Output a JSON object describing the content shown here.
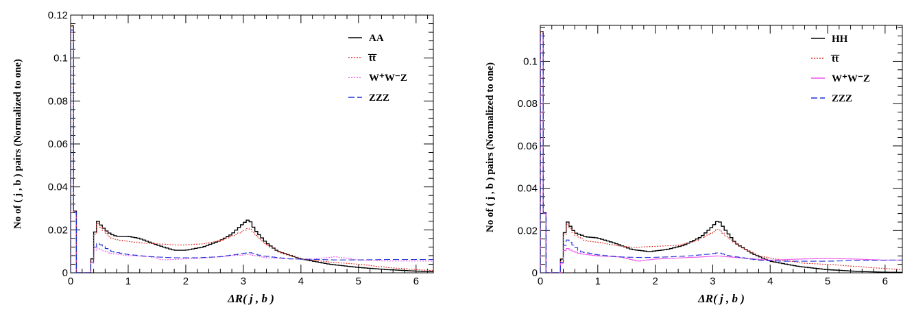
{
  "chart_data": [
    {
      "type": "histogram",
      "xlabel": "ΔR( j , b )",
      "ylabel": "No of ( j , b ) pairs (Normalized to one)",
      "xlim": [
        0,
        6.3
      ],
      "ylim": [
        0,
        0.12
      ],
      "x_ticks": [
        0,
        1,
        2,
        3,
        4,
        5,
        6
      ],
      "x_tick_labels": [
        "0",
        "1",
        "2",
        "3",
        "4",
        "5",
        "6"
      ],
      "y_ticks": [
        0,
        0.02,
        0.04,
        0.06,
        0.08,
        0.1,
        0.12
      ],
      "y_tick_labels": [
        "0",
        "0.02",
        "0.04",
        "0.06",
        "0.08",
        "0.1",
        "0.12"
      ],
      "legend_position": "top-right",
      "series": [
        {
          "name": "AA",
          "color": "#000000",
          "dash": "solid",
          "points": [
            [
              0.0,
              0.115
            ],
            [
              0.1,
              0
            ],
            [
              0.35,
              0
            ],
            [
              0.4,
              0.013
            ],
            [
              0.45,
              0.025
            ],
            [
              0.5,
              0.023
            ],
            [
              0.6,
              0.02
            ],
            [
              0.7,
              0.018
            ],
            [
              0.8,
              0.017
            ],
            [
              1.0,
              0.017
            ],
            [
              1.2,
              0.016
            ],
            [
              1.5,
              0.013
            ],
            [
              1.8,
              0.0105
            ],
            [
              2.0,
              0.0105
            ],
            [
              2.3,
              0.012
            ],
            [
              2.6,
              0.015
            ],
            [
              2.8,
              0.018
            ],
            [
              3.0,
              0.023
            ],
            [
              3.1,
              0.025
            ],
            [
              3.2,
              0.02
            ],
            [
              3.4,
              0.014
            ],
            [
              3.6,
              0.01
            ],
            [
              4.0,
              0.0065
            ],
            [
              4.5,
              0.004
            ],
            [
              5.0,
              0.0025
            ],
            [
              5.5,
              0.0015
            ],
            [
              6.0,
              0.0008
            ],
            [
              6.3,
              0.0005
            ]
          ]
        },
        {
          "name": "t̅t̅",
          "color": "#e0302c",
          "dash": "dotted",
          "points": [
            [
              0.0,
              0.115
            ],
            [
              0.1,
              0
            ],
            [
              0.35,
              0
            ],
            [
              0.4,
              0.012
            ],
            [
              0.45,
              0.024
            ],
            [
              0.5,
              0.022
            ],
            [
              0.6,
              0.019
            ],
            [
              0.7,
              0.016
            ],
            [
              0.9,
              0.015
            ],
            [
              1.2,
              0.014
            ],
            [
              1.5,
              0.0135
            ],
            [
              1.8,
              0.013
            ],
            [
              2.0,
              0.013
            ],
            [
              2.3,
              0.0135
            ],
            [
              2.6,
              0.015
            ],
            [
              2.8,
              0.017
            ],
            [
              3.0,
              0.0195
            ],
            [
              3.1,
              0.021
            ],
            [
              3.2,
              0.018
            ],
            [
              3.4,
              0.013
            ],
            [
              3.7,
              0.009
            ],
            [
              4.0,
              0.0065
            ],
            [
              4.5,
              0.005
            ],
            [
              5.0,
              0.004
            ],
            [
              5.5,
              0.0025
            ],
            [
              6.0,
              0.0015
            ],
            [
              6.3,
              0.001
            ]
          ]
        },
        {
          "name": "W⁺W⁻Z",
          "color": "#ee55ee",
          "dash": "dotted",
          "points": [
            [
              0.0,
              0.112
            ],
            [
              0.1,
              0
            ],
            [
              0.35,
              0
            ],
            [
              0.4,
              0.009
            ],
            [
              0.45,
              0.012
            ],
            [
              0.5,
              0.011
            ],
            [
              0.7,
              0.009
            ],
            [
              1.0,
              0.008
            ],
            [
              1.4,
              0.0075
            ],
            [
              1.6,
              0.006
            ],
            [
              2.0,
              0.0065
            ],
            [
              2.4,
              0.007
            ],
            [
              2.8,
              0.008
            ],
            [
              3.1,
              0.0085
            ],
            [
              3.4,
              0.007
            ],
            [
              3.8,
              0.0065
            ],
            [
              4.2,
              0.0063
            ],
            [
              4.6,
              0.0075
            ],
            [
              5.0,
              0.006
            ],
            [
              5.5,
              0.0055
            ],
            [
              6.0,
              0.0055
            ],
            [
              6.3,
              0.0055
            ]
          ]
        },
        {
          "name": "ZZZ",
          "color": "#1f2fd6",
          "dash": "dashed",
          "points": [
            [
              0.0,
              0.113
            ],
            [
              0.1,
              0
            ],
            [
              0.35,
              0
            ],
            [
              0.4,
              0.01
            ],
            [
              0.45,
              0.014
            ],
            [
              0.5,
              0.0135
            ],
            [
              0.7,
              0.01
            ],
            [
              1.0,
              0.0085
            ],
            [
              1.4,
              0.0075
            ],
            [
              1.8,
              0.007
            ],
            [
              2.2,
              0.007
            ],
            [
              2.6,
              0.0075
            ],
            [
              3.0,
              0.009
            ],
            [
              3.1,
              0.0095
            ],
            [
              3.3,
              0.008
            ],
            [
              3.8,
              0.0065
            ],
            [
              4.2,
              0.0063
            ],
            [
              4.6,
              0.006
            ],
            [
              5.0,
              0.006
            ],
            [
              5.5,
              0.0062
            ],
            [
              6.0,
              0.0062
            ],
            [
              6.3,
              0.0062
            ]
          ]
        }
      ]
    },
    {
      "type": "histogram",
      "xlabel": "ΔR( j , b )",
      "ylabel": "No of ( j , b ) pairs (Normalized to one)",
      "xlim": [
        0,
        6.3
      ],
      "ylim": [
        0,
        0.117
      ],
      "x_ticks": [
        0,
        1,
        2,
        3,
        4,
        5,
        6
      ],
      "x_tick_labels": [
        "0",
        "1",
        "2",
        "3",
        "4",
        "5",
        "6"
      ],
      "y_ticks": [
        0,
        0.02,
        0.04,
        0.06,
        0.08,
        0.1
      ],
      "y_tick_labels": [
        "0",
        "0.02",
        "0.04",
        "0.06",
        "0.08",
        "0.1"
      ],
      "legend_position": "top-right",
      "series": [
        {
          "name": "HH",
          "color": "#000000",
          "dash": "solid",
          "points": [
            [
              0.0,
              0.114
            ],
            [
              0.1,
              0
            ],
            [
              0.35,
              0
            ],
            [
              0.4,
              0.013
            ],
            [
              0.45,
              0.025
            ],
            [
              0.5,
              0.023
            ],
            [
              0.6,
              0.019
            ],
            [
              0.8,
              0.017
            ],
            [
              1.0,
              0.0165
            ],
            [
              1.3,
              0.014
            ],
            [
              1.6,
              0.011
            ],
            [
              1.9,
              0.01
            ],
            [
              2.2,
              0.011
            ],
            [
              2.5,
              0.013
            ],
            [
              2.8,
              0.017
            ],
            [
              3.0,
              0.022
            ],
            [
              3.1,
              0.025
            ],
            [
              3.2,
              0.021
            ],
            [
              3.4,
              0.014
            ],
            [
              3.7,
              0.009
            ],
            [
              4.0,
              0.0055
            ],
            [
              4.5,
              0.003
            ],
            [
              5.0,
              0.0015
            ],
            [
              5.5,
              0.0007
            ],
            [
              6.0,
              0.0003
            ],
            [
              6.3,
              0.0002
            ]
          ]
        },
        {
          "name": "t̅t̅",
          "color": "#e0302c",
          "dash": "dotted",
          "points": [
            [
              0.0,
              0.114
            ],
            [
              0.1,
              0
            ],
            [
              0.35,
              0
            ],
            [
              0.4,
              0.012
            ],
            [
              0.45,
              0.024
            ],
            [
              0.5,
              0.022
            ],
            [
              0.6,
              0.018
            ],
            [
              0.8,
              0.015
            ],
            [
              1.0,
              0.0145
            ],
            [
              1.3,
              0.013
            ],
            [
              1.6,
              0.012
            ],
            [
              2.0,
              0.0125
            ],
            [
              2.4,
              0.013
            ],
            [
              2.7,
              0.015
            ],
            [
              3.0,
              0.019
            ],
            [
              3.1,
              0.021
            ],
            [
              3.2,
              0.018
            ],
            [
              3.5,
              0.012
            ],
            [
              3.8,
              0.008
            ],
            [
              4.2,
              0.006
            ],
            [
              4.6,
              0.0045
            ],
            [
              5.0,
              0.004
            ],
            [
              5.5,
              0.003
            ],
            [
              6.0,
              0.002
            ],
            [
              6.3,
              0.0015
            ]
          ]
        },
        {
          "name": "W⁺W⁻Z",
          "color": "#ee55ee",
          "dash": "solid",
          "points": [
            [
              0.0,
              0.112
            ],
            [
              0.1,
              0
            ],
            [
              0.35,
              0
            ],
            [
              0.4,
              0.009
            ],
            [
              0.45,
              0.012
            ],
            [
              0.5,
              0.011
            ],
            [
              0.7,
              0.009
            ],
            [
              1.0,
              0.008
            ],
            [
              1.4,
              0.0075
            ],
            [
              1.7,
              0.0055
            ],
            [
              2.0,
              0.0065
            ],
            [
              2.4,
              0.007
            ],
            [
              2.8,
              0.0075
            ],
            [
              3.1,
              0.008
            ],
            [
              3.5,
              0.007
            ],
            [
              4.0,
              0.006
            ],
            [
              4.5,
              0.0065
            ],
            [
              5.0,
              0.0068
            ],
            [
              5.5,
              0.0065
            ],
            [
              6.0,
              0.006
            ],
            [
              6.3,
              0.006
            ]
          ]
        },
        {
          "name": "ZZZ",
          "color": "#1f2fd6",
          "dash": "dashed",
          "points": [
            [
              0.0,
              0.113
            ],
            [
              0.1,
              0
            ],
            [
              0.35,
              0
            ],
            [
              0.4,
              0.01
            ],
            [
              0.45,
              0.016
            ],
            [
              0.5,
              0.015
            ],
            [
              0.7,
              0.01
            ],
            [
              1.0,
              0.0085
            ],
            [
              1.4,
              0.0075
            ],
            [
              1.8,
              0.0072
            ],
            [
              2.2,
              0.0075
            ],
            [
              2.6,
              0.008
            ],
            [
              3.0,
              0.009
            ],
            [
              3.1,
              0.0095
            ],
            [
              3.3,
              0.008
            ],
            [
              3.8,
              0.006
            ],
            [
              4.2,
              0.0055
            ],
            [
              4.6,
              0.0055
            ],
            [
              5.0,
              0.0055
            ],
            [
              5.5,
              0.0058
            ],
            [
              6.0,
              0.006
            ],
            [
              6.3,
              0.006
            ]
          ]
        }
      ]
    }
  ]
}
